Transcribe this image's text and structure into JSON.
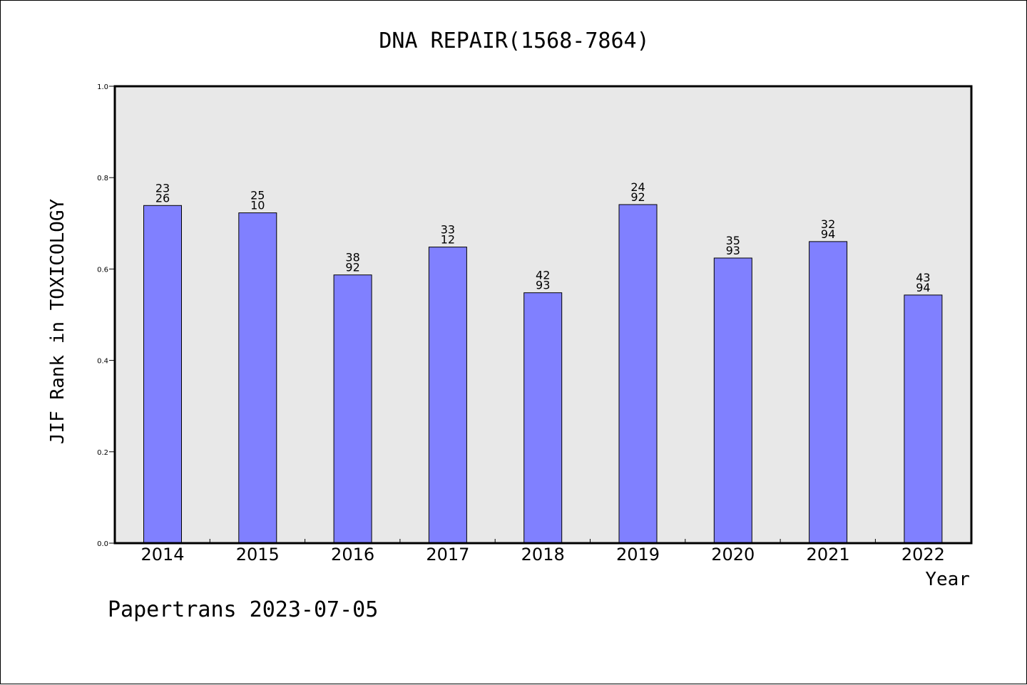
{
  "colors": {
    "bar": "#8080ff",
    "plot_background": "#e8e8e8",
    "axis": "#000000"
  },
  "footer": "Papertrans 2023-07-05",
  "chart_data": {
    "type": "bar",
    "title": "DNA REPAIR(1568-7864)",
    "xlabel": "Year",
    "ylabel": "JIF Rank in TOXICOLOGY",
    "ylim": [
      0,
      1.0
    ],
    "yticks": [
      "0.0",
      "0.2",
      "0.4",
      "0.6",
      "0.8",
      "1.0"
    ],
    "categories": [
      "2014",
      "2015",
      "2016",
      "2017",
      "2018",
      "2019",
      "2020",
      "2021",
      "2022"
    ],
    "values": [
      0.739,
      0.723,
      0.587,
      0.648,
      0.548,
      0.741,
      0.624,
      0.66,
      0.543
    ],
    "bar_labels": [
      {
        "top": "23",
        "bottom": "26"
      },
      {
        "top": "25",
        "bottom": "10"
      },
      {
        "top": "38",
        "bottom": "92"
      },
      {
        "top": "33",
        "bottom": "12"
      },
      {
        "top": "42",
        "bottom": "93"
      },
      {
        "top": "24",
        "bottom": "92"
      },
      {
        "top": "35",
        "bottom": "93"
      },
      {
        "top": "32",
        "bottom": "94"
      },
      {
        "top": "43",
        "bottom": "94"
      }
    ],
    "grid": false,
    "legend": "none"
  }
}
